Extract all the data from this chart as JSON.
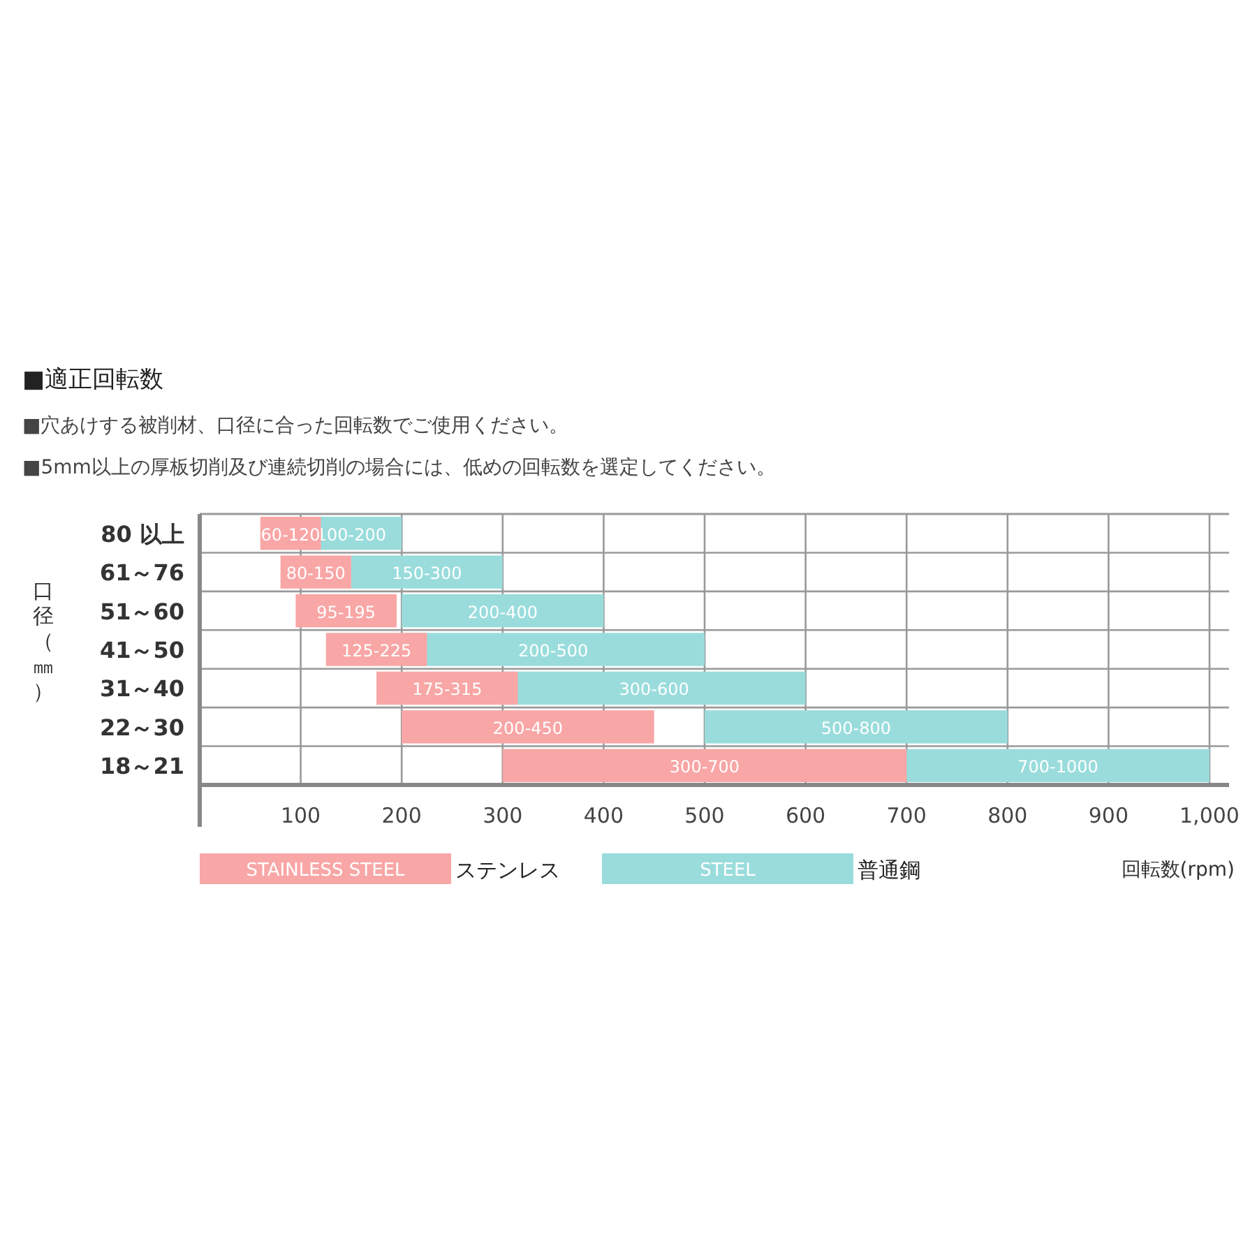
{
  "chart_data": {
    "type": "bar",
    "orientation": "horizontal",
    "title": "■適正回転数",
    "subtitle": "■穴あけする被削材、口径に合った回転数でご使用ください。",
    "annotations": [
      "■5mm以上の厚板切削及び連続切削の場合には、低めの回転数を選定してください。",
      "ステンレス",
      "普通鋼"
    ],
    "ylabel": "口径（㎜）",
    "xlabel": "回転数(rpm)",
    "categories": [
      "80 以上",
      "61～76",
      "51～60",
      "41～50",
      "31～40",
      "22～30",
      "18～21"
    ],
    "xlim": [
      0,
      1000
    ],
    "xticks": [
      100,
      200,
      300,
      400,
      500,
      600,
      700,
      800,
      900,
      {
        "value": 1000,
        "label": "1,000"
      }
    ],
    "grid": true,
    "legend": "bottom",
    "series": [
      {
        "name": "STEEL",
        "color": "#9adcdc",
        "base": [
          100,
          150,
          200,
          200,
          300,
          500,
          700
        ],
        "values": [
          100,
          150,
          200,
          300,
          300,
          300,
          300
        ],
        "value_labels": [
          "100-200",
          "150-300",
          "200-400",
          "200-500",
          "300-600",
          "500-800",
          "700-1000"
        ]
      },
      {
        "name": "STAINLESS STEEL",
        "color": "#f9a6a6",
        "base": [
          60,
          80,
          95,
          125,
          175,
          200,
          300
        ],
        "values": [
          60,
          70,
          100,
          100,
          140,
          250,
          400
        ],
        "value_labels": [
          "60-120",
          "80-150",
          "95-195",
          "125-225",
          "175-315",
          "200-450",
          "300-700"
        ]
      }
    ]
  }
}
